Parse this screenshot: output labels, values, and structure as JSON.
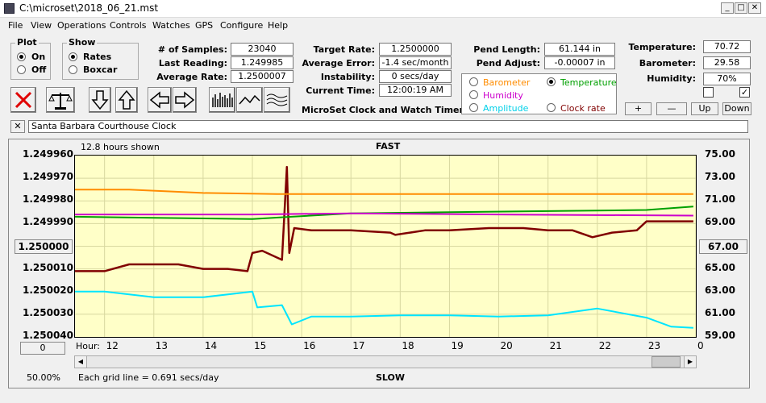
{
  "title": "C:\\microset\\2018_06_21.mst",
  "menu": [
    "File",
    "View",
    "Operations",
    "Controls",
    "Watches",
    "GPS",
    "Configure",
    "Help"
  ],
  "plot_group": {
    "title": "Plot",
    "on": "On",
    "off": "Off",
    "selected": "On"
  },
  "show_group": {
    "title": "Show",
    "rates": "Rates",
    "boxcar": "Boxcar",
    "selected": "Rates"
  },
  "stats": {
    "samples_label": "# of Samples:",
    "samples": "23040",
    "last_label": "Last Reading:",
    "last": "1.249985",
    "avg_label": "Average Rate:",
    "avg": "1.2500007",
    "target_label": "Target Rate:",
    "target": "1.2500000",
    "avgerr_label": "Average Error:",
    "avgerr": "-1.4 sec/month",
    "instab_label": "Instability:",
    "instab": "0 secs/day",
    "time_label": "Current Time:",
    "time": "12:00:19 AM",
    "pendlen_label": "Pend Length:",
    "pendlen": "61.144 in",
    "pendadj_label": "Pend Adjust:",
    "pendadj": "-0.00007 in",
    "temp_label": "Temperature:",
    "temp": "70.72",
    "baro_label": "Barometer:",
    "baro": "29.58",
    "hum_label": "Humidity:",
    "hum": "70%"
  },
  "app_caption": "MicroSet Clock and Watch Timer",
  "overlay_options": {
    "barometer": "Barometer",
    "temperature": "Temperature",
    "humidity": "Humidity",
    "amplitude": "Amplitude",
    "clock_rate": "Clock rate",
    "selected": "Temperature"
  },
  "colors": {
    "barometer": "#ff8c00",
    "temperature": "#00a000",
    "humidity": "#cc00cc",
    "amplitude": "#00e5ff",
    "rate": "#800000"
  },
  "small_buttons": {
    "plus": "+",
    "minus": "—",
    "up": "Up",
    "down": "Down"
  },
  "clock_name": "Santa Barbara Courthouse Clock",
  "chart_header": {
    "hours_shown": "12.8 hours shown",
    "fast": "FAST",
    "slow": "SLOW",
    "hour_label": "Hour:",
    "grid_note": "Each grid line = 0.691 secs/day",
    "left_mid_btn": "1.250000",
    "right_mid_btn": "67.00",
    "left_bottom_btn": "0",
    "zoom": "50.00%"
  },
  "chart_data": {
    "type": "line",
    "x_label": "Hour:",
    "x_ticks": [
      "12",
      "13",
      "14",
      "15",
      "16",
      "17",
      "18",
      "19",
      "20",
      "21",
      "22",
      "23",
      "0"
    ],
    "y_left_ticks": [
      "1.249960",
      "1.249970",
      "1.249980",
      "1.249990",
      "1.250000",
      "1.250010",
      "1.250020",
      "1.250030",
      "1.250040"
    ],
    "y_right_ticks": [
      "75.00",
      "73.00",
      "71.00",
      "69.00",
      "67.00",
      "65.00",
      "63.00",
      "61.00",
      "59.00"
    ],
    "ylim_left": [
      1.24996,
      1.25004
    ],
    "ylim_right": [
      59.0,
      75.0
    ],
    "xlim": [
      11.4,
      24.0
    ],
    "series": [
      {
        "name": "Rate",
        "color": "#800000",
        "x": [
          11.4,
          12.0,
          12.5,
          13.0,
          13.5,
          14.0,
          14.5,
          14.9,
          15.0,
          15.2,
          15.6,
          15.7,
          15.75,
          15.85,
          16.2,
          17.0,
          17.8,
          17.9,
          18.5,
          19.0,
          19.8,
          20.5,
          21.0,
          21.5,
          21.9,
          22.3,
          22.8,
          23.0,
          23.5,
          23.95
        ],
        "y": [
          1.250011,
          1.250011,
          1.250008,
          1.250008,
          1.250008,
          1.25001,
          1.25001,
          1.250011,
          1.250003,
          1.250002,
          1.250006,
          1.249965,
          1.250003,
          1.249992,
          1.249993,
          1.249993,
          1.249994,
          1.249995,
          1.249993,
          1.249993,
          1.249992,
          1.249992,
          1.249993,
          1.249993,
          1.249996,
          1.249994,
          1.249993,
          1.249989,
          1.249989,
          1.249989
        ]
      },
      {
        "name": "Temperature",
        "color": "#00a000",
        "x": [
          11.4,
          13.0,
          15.0,
          15.8,
          17.0,
          19.0,
          21.0,
          23.0,
          23.95
        ],
        "y": [
          69.6,
          69.5,
          69.4,
          69.6,
          69.9,
          70.0,
          70.1,
          70.2,
          70.5
        ]
      },
      {
        "name": "Humidity",
        "color": "#cc00cc",
        "x": [
          11.4,
          15.0,
          17.0,
          20.0,
          23.95
        ],
        "y": [
          69.8,
          69.8,
          69.9,
          69.8,
          69.7
        ]
      },
      {
        "name": "Barometer",
        "color": "#ff8c00",
        "x": [
          11.4,
          12.5,
          14.0,
          15.5,
          17.0,
          19.0,
          21.0,
          23.0,
          23.95
        ],
        "y": [
          72.0,
          72.0,
          71.7,
          71.6,
          71.6,
          71.6,
          71.6,
          71.6,
          71.6
        ]
      },
      {
        "name": "Amplitude",
        "color": "#00e5ff",
        "x": [
          11.4,
          12.0,
          13.0,
          14.0,
          15.0,
          15.1,
          15.6,
          15.8,
          16.2,
          17.0,
          18.0,
          19.0,
          20.0,
          21.0,
          22.0,
          23.0,
          23.5,
          23.95
        ],
        "y": [
          63.0,
          63.0,
          62.5,
          62.5,
          63.0,
          61.6,
          61.8,
          60.1,
          60.8,
          60.8,
          60.9,
          60.9,
          60.8,
          60.9,
          61.5,
          60.7,
          59.9,
          59.8
        ]
      }
    ]
  }
}
